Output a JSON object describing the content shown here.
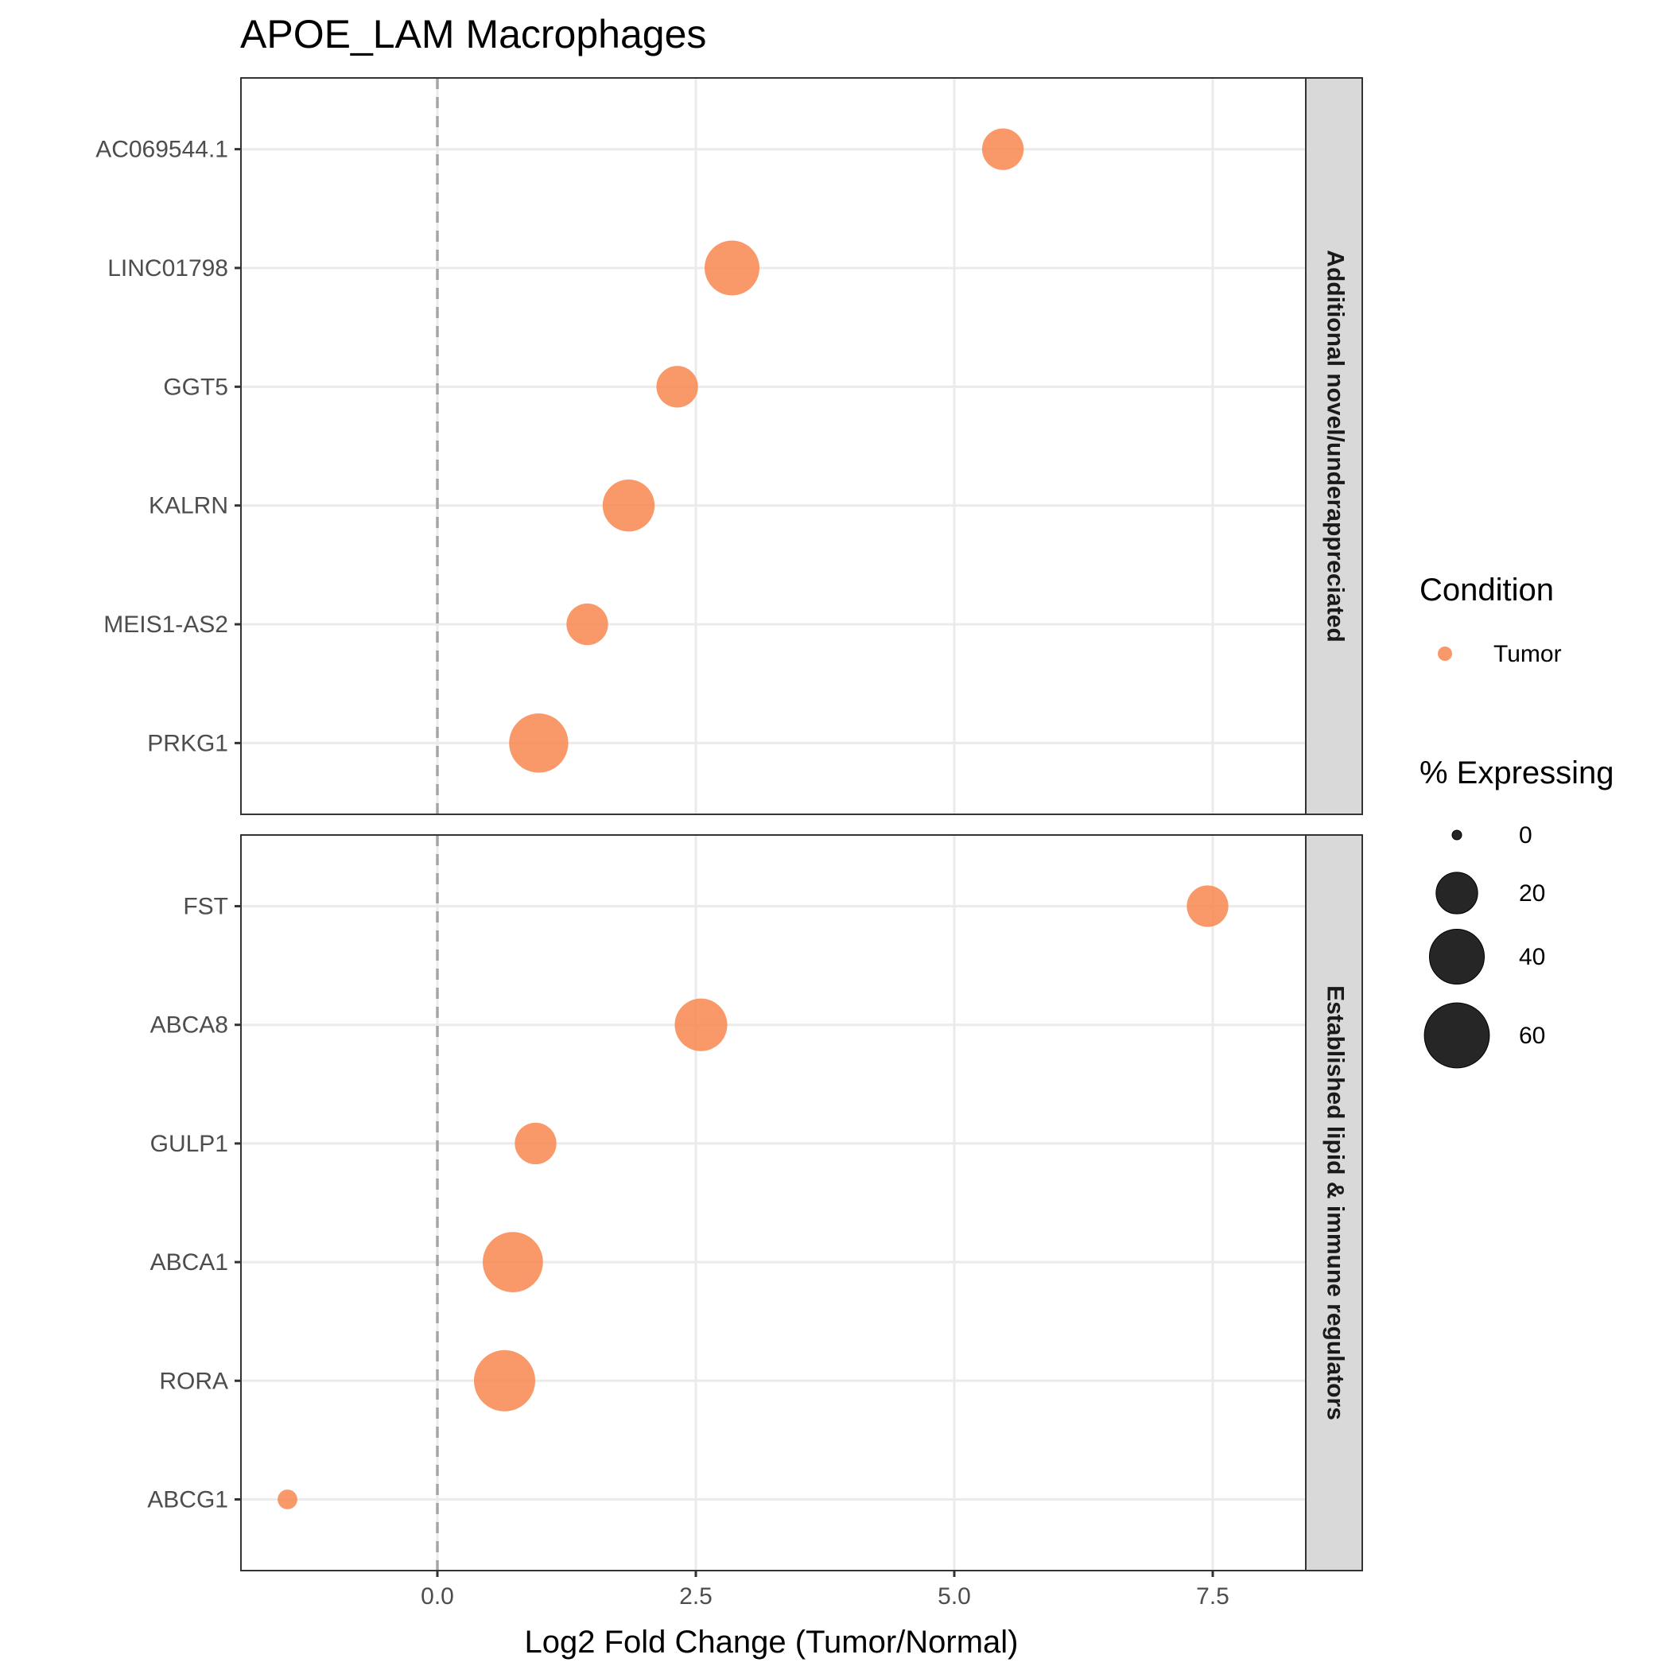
{
  "chart_data": {
    "type": "scatter",
    "title": "APOE_LAM Macrophages",
    "xlabel": "Log2 Fold Change (Tumor/Normal)",
    "ylabel": "",
    "xlim": [
      -1.9,
      8.4
    ],
    "x_ticks": [
      0.0,
      2.5,
      5.0,
      7.5
    ],
    "x_tick_labels": [
      "0.0",
      "2.5",
      "5.0",
      "7.5"
    ],
    "reference_line": {
      "x": 0,
      "style": "dashed"
    },
    "grid": true,
    "color_legend": {
      "title": "Condition",
      "entries": [
        {
          "label": "Tumor",
          "color": "#F8874F"
        }
      ]
    },
    "size_legend": {
      "title": "% Expressing",
      "entries": [
        {
          "label": "0",
          "value": 0
        },
        {
          "label": "20",
          "value": 20
        },
        {
          "label": "40",
          "value": 40
        },
        {
          "label": "60",
          "value": 60
        }
      ]
    },
    "legend_position": "right",
    "panels": [
      {
        "facet_label": "Additional novel/underappreciated",
        "genes": [
          "AC069544.1",
          "LINC01798",
          "GGT5",
          "KALRN",
          "MEIS1-AS2",
          "PRKG1"
        ],
        "points": [
          {
            "gene": "AC069544.1",
            "x": 5.47,
            "pct": 20,
            "condition": "Tumor"
          },
          {
            "gene": "LINC01798",
            "x": 2.85,
            "pct": 40,
            "condition": "Tumor"
          },
          {
            "gene": "GGT5",
            "x": 2.32,
            "pct": 20,
            "condition": "Tumor"
          },
          {
            "gene": "KALRN",
            "x": 1.85,
            "pct": 35,
            "condition": "Tumor"
          },
          {
            "gene": "MEIS1-AS2",
            "x": 1.45,
            "pct": 20,
            "condition": "Tumor"
          },
          {
            "gene": "PRKG1",
            "x": 0.98,
            "pct": 48,
            "condition": "Tumor"
          }
        ]
      },
      {
        "facet_label": "Established lipid & immune regulators",
        "genes": [
          "FST",
          "ABCA8",
          "GULP1",
          "ABCA1",
          "RORA",
          "ABCG1"
        ],
        "points": [
          {
            "gene": "FST",
            "x": 7.45,
            "pct": 20,
            "condition": "Tumor"
          },
          {
            "gene": "ABCA8",
            "x": 2.55,
            "pct": 36,
            "condition": "Tumor"
          },
          {
            "gene": "GULP1",
            "x": 0.95,
            "pct": 20,
            "condition": "Tumor"
          },
          {
            "gene": "ABCA1",
            "x": 0.73,
            "pct": 50,
            "condition": "Tumor"
          },
          {
            "gene": "RORA",
            "x": 0.65,
            "pct": 52,
            "condition": "Tumor"
          },
          {
            "gene": "ABCG1",
            "x": -1.45,
            "pct": 2,
            "condition": "Tumor"
          }
        ]
      }
    ]
  }
}
